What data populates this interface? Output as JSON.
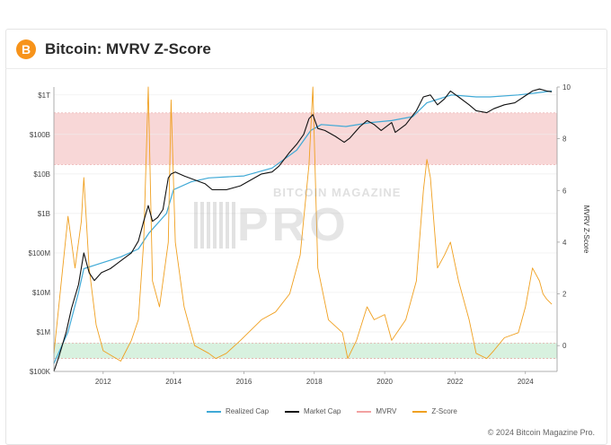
{
  "header": {
    "logo_glyph": "B",
    "title": "Bitcoin: MVRV Z-Score"
  },
  "watermark": {
    "top": "BITCOIN MAGAZINE",
    "main": "PRO"
  },
  "footer": {
    "copyright": "© 2024 Bitcoin Magazine Pro."
  },
  "colors": {
    "realized": "#3fa9d6",
    "market": "#111111",
    "mvrv": "#f2a1a1",
    "zscore": "#f0a020",
    "accent": "#f7931a"
  },
  "chart_data": {
    "type": "line",
    "title": "Bitcoin: MVRV Z-Score",
    "x_axis": {
      "range": [
        2010.6,
        2024.9
      ],
      "ticks": [
        "2012",
        "2014",
        "2016",
        "2018",
        "2020",
        "2022",
        "2024"
      ]
    },
    "y_left": {
      "scale": "log",
      "range_log10": [
        5,
        12.2
      ],
      "ticks": [
        "$100K",
        "$1M",
        "$10M",
        "$100M",
        "$1B",
        "$10B",
        "$100B",
        "$1T"
      ]
    },
    "y_right": {
      "label": "MVRV Z-Score",
      "range": [
        -1,
        10
      ],
      "ticks": [
        "0",
        "2",
        "4",
        "6",
        "8",
        "10"
      ]
    },
    "bands": [
      {
        "name": "overvalued",
        "from": 7,
        "to": 9,
        "color": "#f8d7d7"
      },
      {
        "name": "undervalued",
        "from": -0.5,
        "to": 0.1,
        "color": "#d8f1df"
      }
    ],
    "legend": [
      "Realized Cap",
      "Market Cap",
      "MVRV",
      "Z-Score"
    ],
    "series": [
      {
        "name": "Realized Cap",
        "axis": "left",
        "unit": "log10_usd",
        "x": [
          2010.6,
          2010.8,
          2011.0,
          2011.3,
          2011.45,
          2011.8,
          2012.5,
          2013.0,
          2013.3,
          2013.8,
          2014.0,
          2014.5,
          2015.0,
          2016.0,
          2016.8,
          2017.5,
          2017.9,
          2018.2,
          2018.9,
          2019.6,
          2020.2,
          2020.8,
          2021.2,
          2021.9,
          2022.6,
          2023.0,
          2023.8,
          2024.3,
          2024.75
        ],
        "y": [
          5.2,
          5.6,
          6.0,
          7.0,
          7.6,
          7.7,
          7.9,
          8.1,
          8.5,
          9.0,
          9.6,
          9.8,
          9.9,
          9.95,
          10.15,
          10.6,
          11.1,
          11.25,
          11.2,
          11.3,
          11.35,
          11.45,
          11.8,
          12.0,
          11.95,
          11.95,
          12.0,
          12.05,
          12.1
        ]
      },
      {
        "name": "Market Cap",
        "axis": "left",
        "unit": "log10_usd",
        "x": [
          2010.6,
          2010.75,
          2010.95,
          2011.1,
          2011.3,
          2011.45,
          2011.6,
          2011.75,
          2011.95,
          2012.2,
          2012.5,
          2012.8,
          2013.0,
          2013.15,
          2013.28,
          2013.4,
          2013.55,
          2013.7,
          2013.85,
          2013.93,
          2014.05,
          2014.3,
          2014.6,
          2014.9,
          2015.1,
          2015.5,
          2015.9,
          2016.2,
          2016.5,
          2016.8,
          2017.0,
          2017.3,
          2017.5,
          2017.7,
          2017.85,
          2017.96,
          2018.1,
          2018.3,
          2018.6,
          2018.85,
          2019.0,
          2019.3,
          2019.5,
          2019.7,
          2019.9,
          2020.2,
          2020.3,
          2020.6,
          2020.9,
          2021.1,
          2021.3,
          2021.5,
          2021.7,
          2021.87,
          2022.1,
          2022.4,
          2022.6,
          2022.9,
          2023.1,
          2023.4,
          2023.7,
          2023.95,
          2024.2,
          2024.4,
          2024.6,
          2024.75
        ],
        "y": [
          5.0,
          5.4,
          6.0,
          6.6,
          7.2,
          8.0,
          7.5,
          7.3,
          7.5,
          7.6,
          7.8,
          8.0,
          8.3,
          8.8,
          9.2,
          8.8,
          8.9,
          9.1,
          9.9,
          10.0,
          10.05,
          9.95,
          9.85,
          9.75,
          9.6,
          9.6,
          9.7,
          9.85,
          10.0,
          10.05,
          10.2,
          10.55,
          10.75,
          11.0,
          11.4,
          11.5,
          11.15,
          11.1,
          10.95,
          10.8,
          10.9,
          11.2,
          11.35,
          11.25,
          11.1,
          11.3,
          11.05,
          11.25,
          11.6,
          11.95,
          12.0,
          11.75,
          11.9,
          12.1,
          11.95,
          11.75,
          11.6,
          11.55,
          11.65,
          11.75,
          11.8,
          11.95,
          12.1,
          12.15,
          12.1,
          12.08
        ]
      },
      {
        "name": "Z-Score",
        "axis": "right",
        "unit": "z",
        "x": [
          2010.6,
          2010.7,
          2010.85,
          2011.0,
          2011.2,
          2011.38,
          2011.45,
          2011.6,
          2011.8,
          2012.0,
          2012.5,
          2012.8,
          2013.0,
          2013.15,
          2013.28,
          2013.4,
          2013.6,
          2013.85,
          2013.93,
          2014.05,
          2014.3,
          2014.6,
          2015.0,
          2015.2,
          2015.5,
          2015.9,
          2016.5,
          2016.9,
          2017.3,
          2017.6,
          2017.85,
          2017.96,
          2018.1,
          2018.4,
          2018.8,
          2018.95,
          2019.2,
          2019.5,
          2019.7,
          2020.0,
          2020.2,
          2020.6,
          2020.9,
          2021.1,
          2021.2,
          2021.3,
          2021.5,
          2021.7,
          2021.87,
          2022.1,
          2022.4,
          2022.6,
          2022.9,
          2023.1,
          2023.4,
          2023.8,
          2024.0,
          2024.2,
          2024.4,
          2024.5,
          2024.6,
          2024.75
        ],
        "y": [
          -0.3,
          1.0,
          3.0,
          5.0,
          3.0,
          4.8,
          6.5,
          3.0,
          0.8,
          -0.2,
          -0.6,
          0.2,
          1.0,
          4.0,
          10.0,
          2.5,
          1.5,
          4.0,
          9.5,
          4.0,
          1.5,
          0.0,
          -0.3,
          -0.5,
          -0.3,
          0.2,
          1.0,
          1.3,
          2.0,
          3.5,
          7.0,
          10.0,
          3.0,
          1.0,
          0.5,
          -0.5,
          0.2,
          1.5,
          1.0,
          1.2,
          0.2,
          1.0,
          2.5,
          6.0,
          7.2,
          6.5,
          3.0,
          3.5,
          4.0,
          2.5,
          1.0,
          -0.3,
          -0.5,
          -0.2,
          0.3,
          0.5,
          1.5,
          3.0,
          2.5,
          2.0,
          1.8,
          1.6
        ]
      }
    ]
  }
}
